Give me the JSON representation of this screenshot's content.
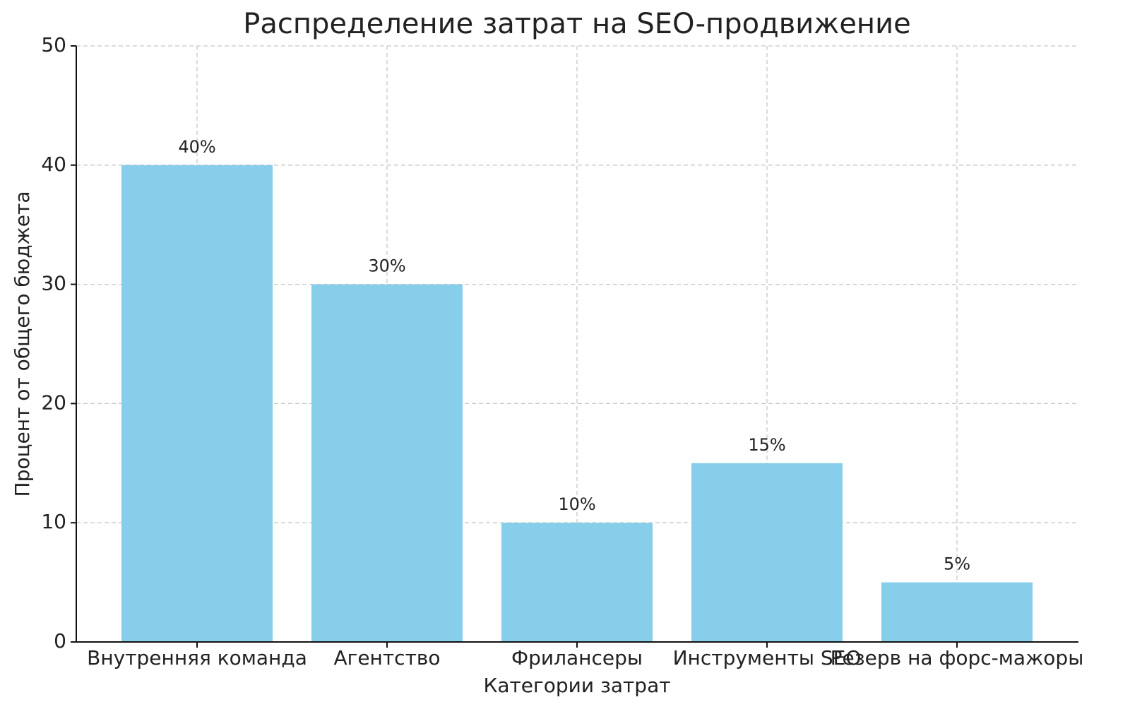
{
  "chart_data": {
    "type": "bar",
    "title": "Распределение затрат на SEO-продвижение",
    "xlabel": "Категории затрат",
    "ylabel": "Процент от общего бюджета",
    "categories": [
      "Внутренняя команда",
      "Агентство",
      "Фрилансеры",
      "Инструменты SEO",
      "Резерв на форс-мажоры"
    ],
    "values": [
      40,
      30,
      10,
      15,
      5
    ],
    "value_labels": [
      "40%",
      "30%",
      "10%",
      "15%",
      "5%"
    ],
    "color": "#87ceeb",
    "ylim": [
      0,
      50
    ],
    "yticks": [
      0,
      10,
      20,
      30,
      40,
      50
    ],
    "grid": true
  }
}
